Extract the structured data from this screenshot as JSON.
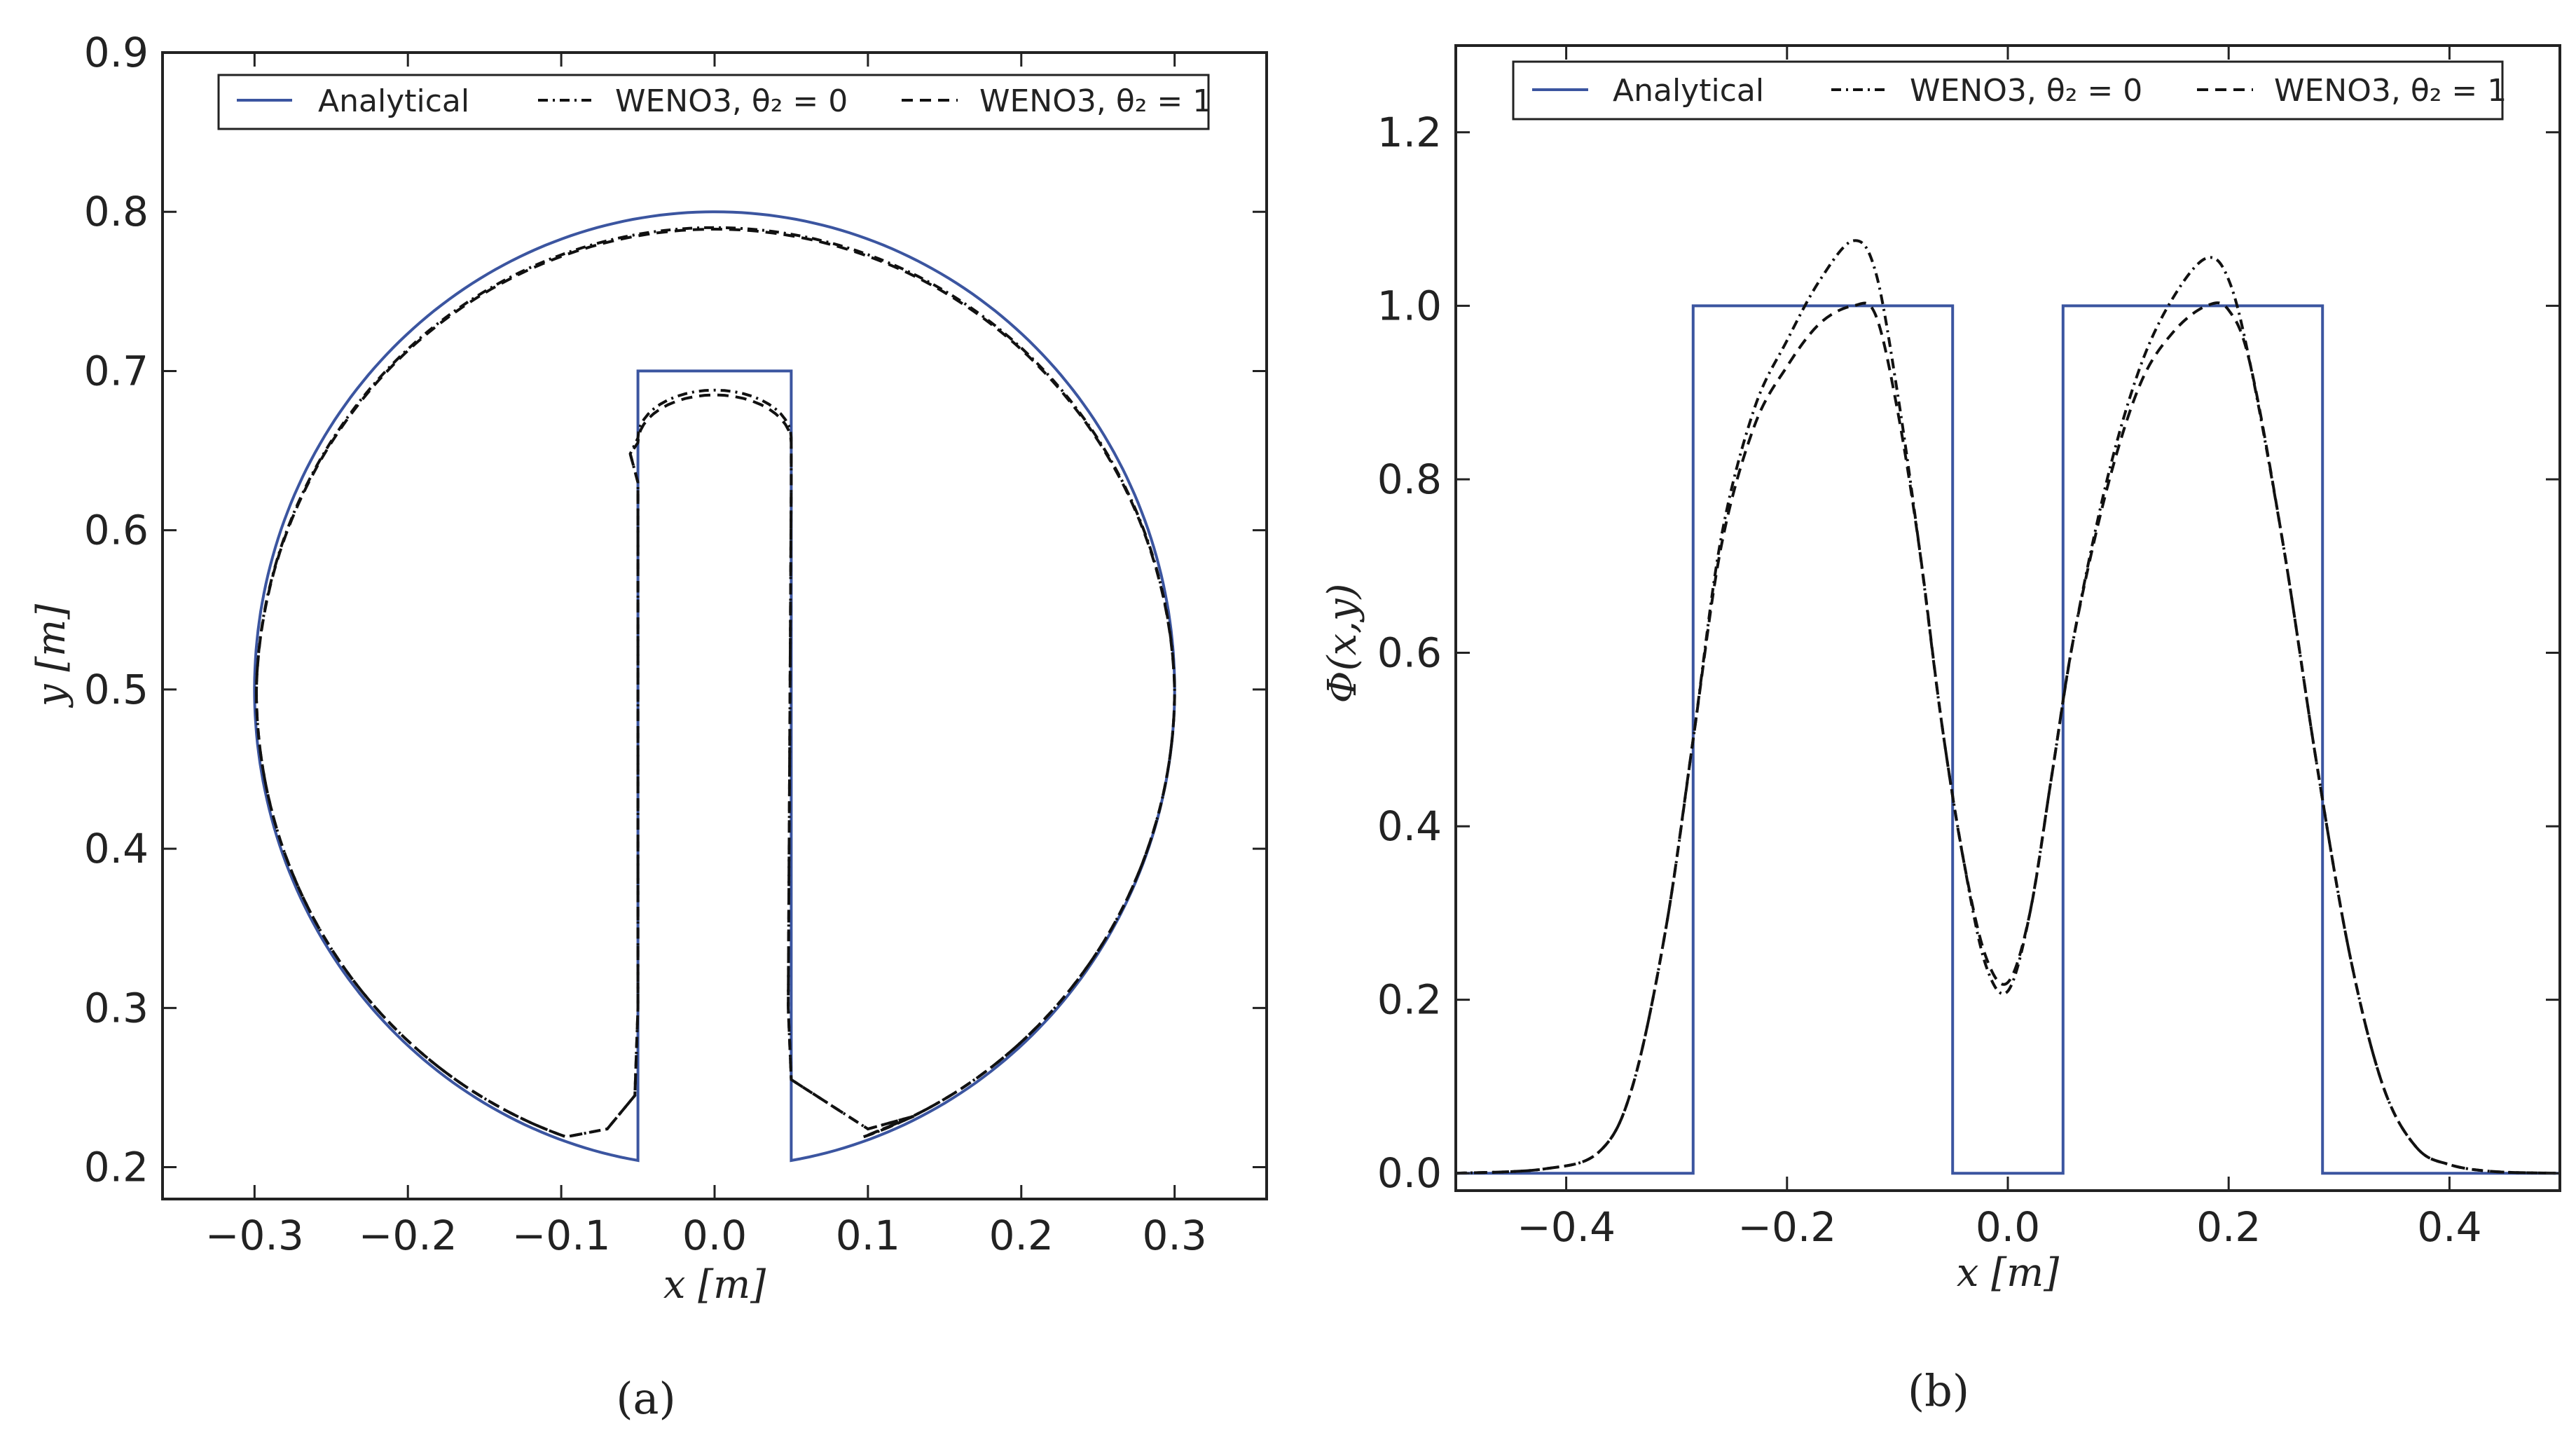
{
  "chart_data": [
    {
      "panel_label": "(a)",
      "type": "line",
      "xlabel": "x [m]",
      "ylabel": "y [m]",
      "xlim": [
        -0.36,
        0.36
      ],
      "ylim": [
        0.18,
        0.9
      ],
      "xticks": [
        -0.3,
        -0.2,
        -0.1,
        0.0,
        0.1,
        0.2,
        0.3
      ],
      "yticks": [
        0.2,
        0.3,
        0.4,
        0.5,
        0.6,
        0.7,
        0.8,
        0.9
      ],
      "xtick_labels": [
        "−0.3",
        "−0.2",
        "−0.1",
        "0.0",
        "0.1",
        "0.2",
        "0.3"
      ],
      "ytick_labels": [
        "0.2",
        "0.3",
        "0.4",
        "0.5",
        "0.6",
        "0.7",
        "0.8",
        "0.9"
      ],
      "grid": false,
      "legend_position": "top",
      "colors": {
        "analytical": "#3b55a0",
        "numerical": "#111111"
      },
      "shape": {
        "circle_center": [
          0.0,
          0.5
        ],
        "circle_radius": 0.3,
        "slot_half_width": 0.05,
        "slot_top": 0.7,
        "slot_bottom": 0.205
      },
      "series": [
        {
          "name": "Analytical",
          "style": "solid"
        },
        {
          "name": "WENO3, θ₂ = 0",
          "style": "dashdot",
          "outer_radius_top": 0.293,
          "inner_points": [
            [
              -0.05,
              0.24
            ],
            [
              -0.085,
              0.225
            ],
            [
              -0.05,
              0.66
            ],
            [
              0.0,
              0.688
            ],
            [
              0.05,
              0.66
            ],
            [
              0.05,
              0.24
            ],
            [
              0.1,
              0.225
            ]
          ]
        },
        {
          "name": "WENO3, θ₂ = 1",
          "style": "dashed",
          "outer_radius_top": 0.292,
          "inner_points": [
            [
              -0.05,
              0.24
            ],
            [
              -0.085,
              0.225
            ],
            [
              -0.05,
              0.66
            ],
            [
              0.0,
              0.685
            ],
            [
              0.05,
              0.66
            ],
            [
              0.05,
              0.24
            ],
            [
              0.1,
              0.225
            ]
          ]
        }
      ]
    },
    {
      "panel_label": "(b)",
      "type": "line",
      "xlabel": "x [m]",
      "ylabel": "Φ(x,y)",
      "xlim": [
        -0.5,
        0.5
      ],
      "ylim": [
        -0.02,
        1.3
      ],
      "xticks": [
        -0.4,
        -0.2,
        0.0,
        0.2,
        0.4
      ],
      "yticks": [
        0.0,
        0.2,
        0.4,
        0.6,
        0.8,
        1.0,
        1.2
      ],
      "xtick_labels": [
        "−0.4",
        "−0.2",
        "0.0",
        "0.2",
        "0.4"
      ],
      "ytick_labels": [
        "0.0",
        "0.2",
        "0.4",
        "0.6",
        "0.8",
        "1.0",
        "1.2"
      ],
      "grid": false,
      "legend_position": "top",
      "colors": {
        "analytical": "#3b55a0",
        "numerical": "#111111"
      },
      "series": [
        {
          "name": "Analytical",
          "style": "solid",
          "x": [
            -0.5,
            -0.285,
            -0.285,
            -0.05,
            -0.05,
            0.05,
            0.05,
            0.285,
            0.285,
            0.5
          ],
          "y": [
            0.0,
            0.0,
            1.0,
            1.0,
            0.0,
            0.0,
            1.0,
            1.0,
            0.0,
            0.0
          ]
        },
        {
          "name": "WENO3, θ₂ = 0",
          "style": "dashdot",
          "x": [
            -0.5,
            -0.42,
            -0.37,
            -0.34,
            -0.31,
            -0.285,
            -0.26,
            -0.23,
            -0.2,
            -0.17,
            -0.14,
            -0.12,
            -0.1,
            -0.08,
            -0.06,
            -0.04,
            -0.02,
            0.0,
            0.02,
            0.04,
            0.06,
            0.09,
            0.12,
            0.15,
            0.18,
            0.2,
            0.22,
            0.25,
            0.28,
            0.31,
            0.34,
            0.37,
            0.4,
            0.44,
            0.5
          ],
          "y": [
            0.0,
            0.005,
            0.025,
            0.1,
            0.28,
            0.5,
            0.73,
            0.88,
            0.96,
            1.03,
            1.075,
            1.04,
            0.9,
            0.72,
            0.52,
            0.36,
            0.24,
            0.21,
            0.3,
            0.46,
            0.62,
            0.8,
            0.93,
            1.01,
            1.055,
            1.03,
            0.93,
            0.72,
            0.47,
            0.25,
            0.1,
            0.03,
            0.01,
            0.002,
            0.0
          ]
        },
        {
          "name": "WENO3, θ₂ = 1",
          "style": "dashed",
          "x": [
            -0.5,
            -0.42,
            -0.37,
            -0.34,
            -0.31,
            -0.285,
            -0.26,
            -0.23,
            -0.2,
            -0.17,
            -0.14,
            -0.12,
            -0.1,
            -0.08,
            -0.06,
            -0.04,
            -0.02,
            0.0,
            0.02,
            0.04,
            0.06,
            0.09,
            0.12,
            0.15,
            0.18,
            0.2,
            0.22,
            0.25,
            0.28,
            0.31,
            0.34,
            0.37,
            0.4,
            0.44,
            0.5
          ],
          "y": [
            0.0,
            0.005,
            0.025,
            0.1,
            0.28,
            0.5,
            0.72,
            0.86,
            0.93,
            0.98,
            1.0,
            0.99,
            0.88,
            0.72,
            0.52,
            0.36,
            0.25,
            0.22,
            0.3,
            0.46,
            0.62,
            0.79,
            0.91,
            0.97,
            1.0,
            0.995,
            0.93,
            0.72,
            0.47,
            0.25,
            0.1,
            0.03,
            0.01,
            0.002,
            0.0
          ]
        }
      ]
    }
  ]
}
